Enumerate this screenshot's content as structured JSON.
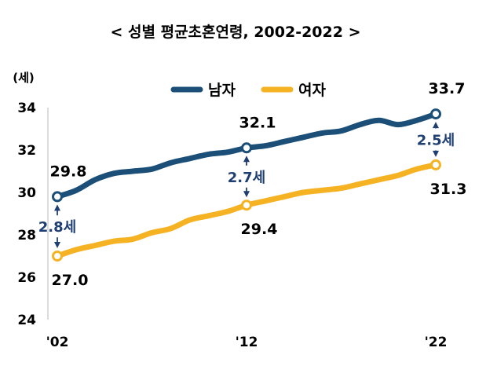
{
  "chart_data": {
    "type": "line",
    "title": "< 성별 평균초혼연령, 2002-2022 >",
    "ylabel": "(세)",
    "xlabel": "",
    "ylim": [
      24,
      34
    ],
    "yticks": [
      "24",
      "26",
      "28",
      "30",
      "32",
      "34"
    ],
    "x_tick_labels": [
      "'02",
      "'12",
      "'22"
    ],
    "x_range": [
      2002,
      2022
    ],
    "colors": {
      "male": "#1b4f77",
      "female": "#f5b323",
      "gap": "#1f3f72"
    },
    "series": [
      {
        "key": "male",
        "name": "남자",
        "x": [
          2002,
          2003,
          2004,
          2005,
          2006,
          2007,
          2008,
          2009,
          2010,
          2011,
          2012,
          2013,
          2014,
          2015,
          2016,
          2017,
          2018,
          2019,
          2020,
          2021,
          2022
        ],
        "values": [
          29.8,
          30.1,
          30.6,
          30.9,
          31.0,
          31.1,
          31.4,
          31.6,
          31.8,
          31.9,
          32.1,
          32.2,
          32.4,
          32.6,
          32.8,
          32.9,
          33.2,
          33.4,
          33.2,
          33.4,
          33.7
        ]
      },
      {
        "key": "female",
        "name": "여자",
        "x": [
          2002,
          2003,
          2004,
          2005,
          2006,
          2007,
          2008,
          2009,
          2010,
          2011,
          2012,
          2013,
          2014,
          2015,
          2016,
          2017,
          2018,
          2019,
          2020,
          2021,
          2022
        ],
        "values": [
          27.0,
          27.3,
          27.5,
          27.7,
          27.8,
          28.1,
          28.3,
          28.7,
          28.9,
          29.1,
          29.4,
          29.6,
          29.8,
          30.0,
          30.1,
          30.2,
          30.4,
          30.6,
          30.8,
          31.1,
          31.3
        ]
      }
    ],
    "highlights": [
      {
        "x": 2002,
        "male_label": "29.8",
        "female_label": "27.0",
        "gap_label": "2.8세"
      },
      {
        "x": 2012,
        "male_label": "32.1",
        "female_label": "29.4",
        "gap_label": "2.7세"
      },
      {
        "x": 2022,
        "male_label": "33.7",
        "female_label": "31.3",
        "gap_label": "2.5세"
      }
    ]
  }
}
